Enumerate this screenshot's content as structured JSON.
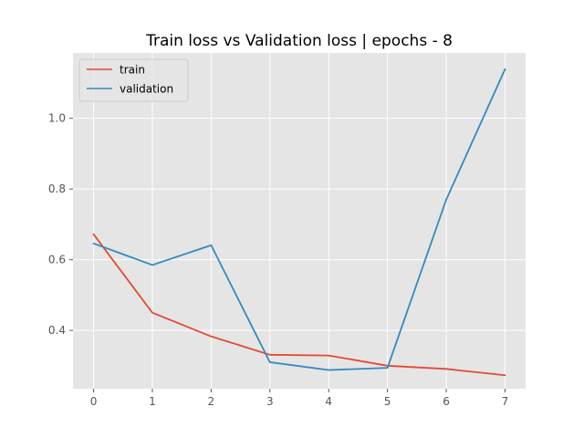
{
  "chart_data": {
    "type": "line",
    "title": "Train loss vs Validation loss | epochs - 8",
    "xlabel": "",
    "ylabel": "",
    "x": [
      0,
      1,
      2,
      3,
      4,
      5,
      6,
      7
    ],
    "xlim": [
      -0.35,
      7.35
    ],
    "ylim": [
      0.235,
      1.185
    ],
    "yticks": [
      0.4,
      0.6,
      0.8,
      1.0
    ],
    "ytick_labels": [
      "0.4",
      "0.6",
      "0.8",
      "1.0"
    ],
    "xtick_labels": [
      "0",
      "1",
      "2",
      "3",
      "4",
      "5",
      "6",
      "7"
    ],
    "grid": true,
    "legend_position": "upper left",
    "series": [
      {
        "name": "train",
        "color": "#E24A33",
        "values": [
          0.672,
          0.45,
          0.383,
          0.331,
          0.329,
          0.3,
          0.291,
          0.273
        ]
      },
      {
        "name": "validation",
        "color": "#348ABD",
        "values": [
          0.646,
          0.585,
          0.641,
          0.31,
          0.288,
          0.294,
          0.77,
          1.139
        ]
      }
    ],
    "colors": {
      "axes_bg": "#E5E5E5",
      "grid": "#FFFFFF",
      "tick_text": "#555555",
      "title_text": "#000000"
    }
  }
}
